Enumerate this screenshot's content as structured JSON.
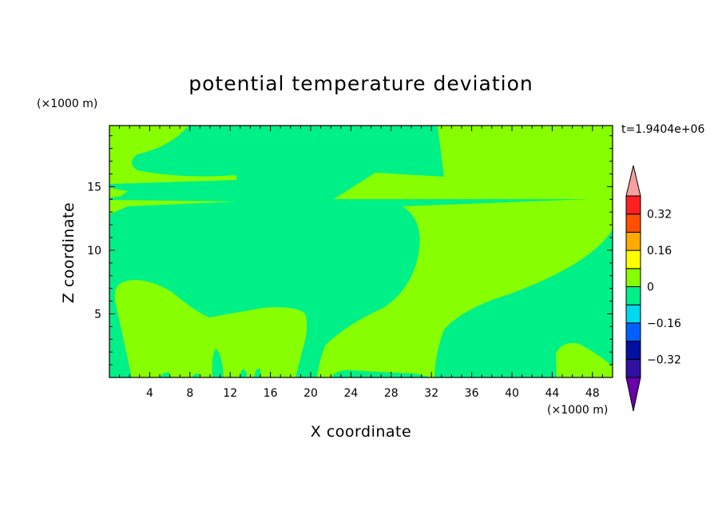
{
  "chart_data": {
    "type": "heatmap",
    "title": "potential temperature deviation",
    "xlabel": "X coordinate",
    "ylabel": "Z coordinate",
    "x_unit": "(×1000 m)",
    "y_unit": "(×1000 m)",
    "time_label": "t=1.9404e+06",
    "xlim": [
      0,
      50
    ],
    "ylim": [
      0,
      19.8
    ],
    "x_ticks": [
      4,
      8,
      12,
      16,
      20,
      24,
      28,
      32,
      36,
      40,
      44,
      48
    ],
    "y_ticks": [
      5,
      10,
      15
    ],
    "colorbar": {
      "levels": [
        -0.4,
        -0.32,
        -0.24,
        -0.16,
        -0.08,
        0,
        0.08,
        0.16,
        0.24,
        0.32,
        0.4
      ],
      "labels": [
        "0.32",
        "0.16",
        "0",
        "−0.16",
        "−0.32"
      ],
      "label_values": [
        0.32,
        0.16,
        0,
        -0.16,
        -0.32
      ],
      "colors": [
        "#6a00a8",
        "#3010a0",
        "#0010a0",
        "#0060ff",
        "#00d8f0",
        "#00f088",
        "#88ff00",
        "#ffff00",
        "#ffaa00",
        "#ff5000",
        "#ff2020",
        "#f8a0a0"
      ]
    },
    "background_level_color": "#00f088",
    "warm_level_color": "#88ff00"
  }
}
